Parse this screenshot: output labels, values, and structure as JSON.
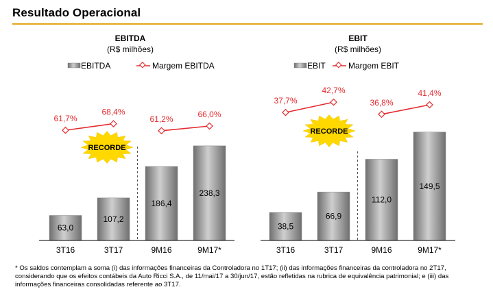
{
  "page": {
    "title": "Resultado Operacional",
    "footnote": "* Os saldos contemplam a soma (i) das informações financeiras da Controladora no 1T17; (ii) das informações financeiras da controladora no 2T17, considerando que os efeitos contábeis da Auto Ricci S.A., de 11/mai/17 a 30/jun/17, estão refletidas na rubrica de equivalência patrimonial; e (iii) das informações financeiras consolidadas referente ao 3T17."
  },
  "colors": {
    "margin_line": "#e32b2f",
    "bar_dark": "#6f6f6f",
    "bar_light": "#cfcfcf",
    "starburst": "#ffd800",
    "title_rule": "#e3a51a"
  },
  "chart_data": [
    {
      "type": "bar",
      "title": "EBITDA",
      "subtitle": "(R$ milhões)",
      "categories": [
        "3T16",
        "3T17",
        "9M16",
        "9M17*"
      ],
      "series": [
        {
          "name": "EBITDA",
          "type": "bar",
          "values": [
            63.0,
            107.2,
            186.4,
            238.3
          ],
          "labels": [
            "63,0",
            "107,2",
            "186,4",
            "238,3"
          ]
        },
        {
          "name": "Margem EBITDA",
          "type": "line",
          "values": [
            61.7,
            68.4,
            61.2,
            66.0
          ],
          "labels": [
            "61,7%",
            "68,4%",
            "61,2%",
            "66,0%"
          ],
          "segments": [
            [
              0,
              1
            ],
            [
              2,
              3
            ]
          ]
        }
      ],
      "ylim": [
        0,
        245
      ],
      "annotations": [
        {
          "text": "RECORDE",
          "near": "3T17"
        }
      ],
      "separator_after": "3T17",
      "legend": "top"
    },
    {
      "type": "bar",
      "title": "EBIT",
      "subtitle": "(R$ milhões)",
      "categories": [
        "3T16",
        "3T17",
        "9M16",
        "9M17*"
      ],
      "series": [
        {
          "name": "EBIT",
          "type": "bar",
          "values": [
            38.5,
            66.9,
            112.0,
            149.5
          ],
          "labels": [
            "38,5",
            "66,9",
            "112,0",
            "149,5"
          ]
        },
        {
          "name": "Margem EBIT",
          "type": "line",
          "values": [
            37.7,
            42.7,
            36.8,
            41.4
          ],
          "labels": [
            "37,7%",
            "42,7%",
            "36,8%",
            "41,4%"
          ],
          "segments": [
            [
              0,
              1
            ],
            [
              2,
              3
            ]
          ]
        }
      ],
      "ylim": [
        0,
        154
      ],
      "annotations": [
        {
          "text": "RECORDE",
          "near": "3T17"
        }
      ],
      "separator_after": "3T17",
      "legend": "top"
    }
  ]
}
